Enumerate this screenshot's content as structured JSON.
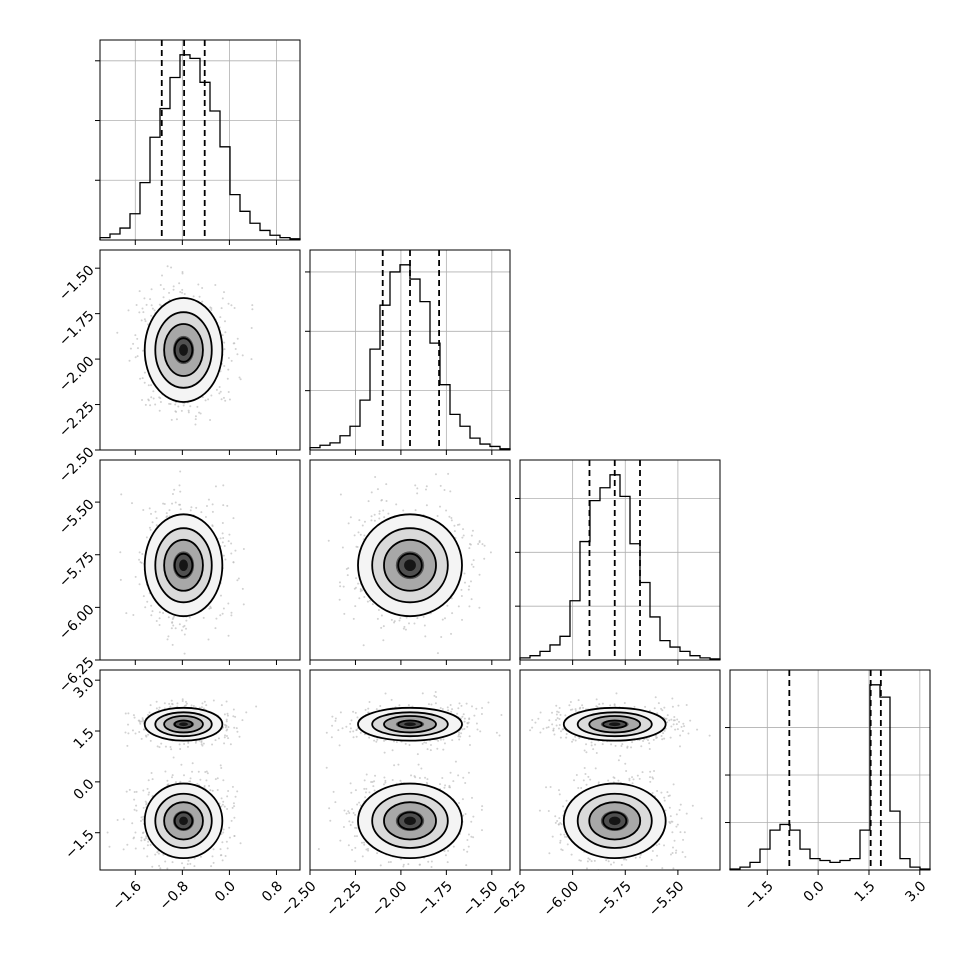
{
  "chart_data": {
    "type": "corner",
    "n_params": 4,
    "grid": true,
    "quantile_line_style": "dashed",
    "params": [
      {
        "range": [
          -2.2,
          1.2
        ],
        "ticks": [
          -1.6,
          -0.8,
          0.0,
          0.8
        ],
        "tick_labels": [
          "−1.6",
          "−0.8",
          "0.0",
          "0.8"
        ],
        "quantiles": [
          -1.15,
          -0.77,
          -0.42
        ],
        "hist": [
          2,
          5,
          10,
          22,
          48,
          86,
          110,
          136,
          155,
          152,
          132,
          108,
          78,
          38,
          24,
          14,
          8,
          4,
          2,
          1
        ]
      },
      {
        "range": [
          -2.5,
          -1.4
        ],
        "ticks": [
          -2.5,
          -2.25,
          -2.0,
          -1.75,
          -1.5
        ],
        "tick_labels": [
          "−2.50",
          "−2.25",
          "−2.00",
          "−1.75",
          "−1.50"
        ],
        "quantiles": [
          -2.1,
          -1.95,
          -1.79
        ],
        "hist": [
          2,
          4,
          6,
          12,
          20,
          42,
          85,
          122,
          150,
          156,
          144,
          125,
          90,
          55,
          30,
          20,
          10,
          5,
          3,
          1
        ]
      },
      {
        "range": [
          -6.25,
          -5.3
        ],
        "ticks": [
          -6.25,
          -6.0,
          -5.75,
          -5.5
        ],
        "tick_labels": [
          "−6.25",
          "−6.00",
          "−5.75",
          "−5.50"
        ],
        "quantiles": [
          -5.92,
          -5.8,
          -5.68
        ],
        "hist": [
          2,
          4,
          8,
          14,
          22,
          55,
          110,
          148,
          160,
          172,
          152,
          108,
          72,
          40,
          18,
          12,
          8,
          4,
          2,
          1
        ]
      },
      {
        "range": [
          -2.6,
          3.3
        ],
        "ticks": [
          -1.5,
          0.0,
          1.5,
          3.0
        ],
        "tick_labels": [
          "−1.5",
          "0.0",
          "1.5",
          "3.0"
        ],
        "quantiles": [
          -0.85,
          1.55,
          1.85
        ],
        "hist": [
          1,
          3,
          8,
          22,
          42,
          48,
          42,
          22,
          12,
          10,
          8,
          10,
          12,
          42,
          195,
          182,
          62,
          12,
          3,
          1
        ]
      }
    ],
    "pairs": [
      {
        "x": 0,
        "y": 1,
        "center": [
          -0.78,
          -1.95
        ],
        "sd": [
          0.3,
          0.13
        ]
      },
      {
        "x": 0,
        "y": 2,
        "center": [
          -0.78,
          -5.8
        ],
        "sd": [
          0.3,
          0.11
        ]
      },
      {
        "x": 1,
        "y": 2,
        "center": [
          -1.95,
          -5.8
        ],
        "sd": [
          0.13,
          0.11
        ]
      },
      {
        "x": 0,
        "y": 3,
        "center": [
          -0.78,
          1.7
        ],
        "sd": [
          0.3,
          0.22
        ],
        "center2": [
          -0.78,
          -1.15
        ],
        "sd2": [
          0.3,
          0.5
        ]
      },
      {
        "x": 1,
        "y": 3,
        "center": [
          -1.95,
          1.7
        ],
        "sd": [
          0.13,
          0.22
        ],
        "center2": [
          -1.95,
          -1.15
        ],
        "sd2": [
          0.13,
          0.5
        ]
      },
      {
        "x": 2,
        "y": 3,
        "center": [
          -5.8,
          1.7
        ],
        "sd": [
          0.11,
          0.22
        ],
        "center2": [
          -5.8,
          -1.15
        ],
        "sd2": [
          0.11,
          0.5
        ]
      }
    ]
  }
}
